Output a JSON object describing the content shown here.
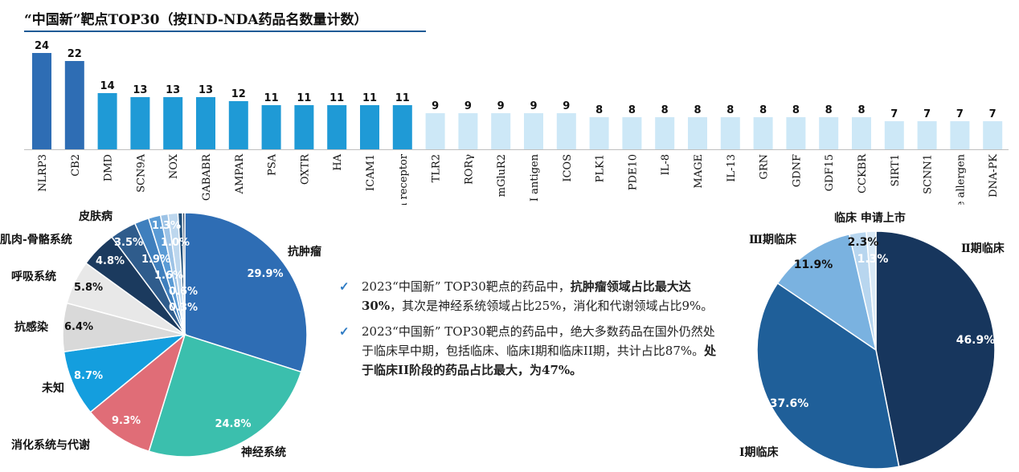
{
  "page": {
    "title": "“中国新”靶点TOP30（按IND-NDA药品名数量计数）"
  },
  "bullets": [
    {
      "segments": [
        {
          "text": "2023“中国新” TOP30靶点的药品中，",
          "bold": false
        },
        {
          "text": "抗肿瘤领域占比最大达30%",
          "bold": true
        },
        {
          "text": "，其次是神经系统领域占比25%，消化和代谢领域占比9%。",
          "bold": false
        }
      ]
    },
    {
      "segments": [
        {
          "text": "2023“中国新” TOP30靶点的药品中，绝大多数药品在国外仍然处于临床早中期，包括临床、临床I期和临床II期，共计占比87%。",
          "bold": false
        },
        {
          "text": "处于临床II阶段的药品占比最大，为47%。",
          "bold": true
        }
      ]
    }
  ],
  "colors": {
    "bar_dark": "#2e6db4",
    "bar_mid": "#1f9ad6",
    "bar_light": "#cde8f7"
  },
  "chart_data": [
    {
      "type": "bar",
      "categories": [
        "NLRP3",
        "CB2",
        "DMD",
        "SCN9A",
        "NOX",
        "GABABR",
        "AMPAR",
        "PSA",
        "OXTR",
        "HA",
        "ICAM1",
        "Amylin receptor",
        "TLR2",
        "RORγ",
        "mGluR2",
        "HLA class I antigen",
        "ICOS",
        "PLK1",
        "PDE10",
        "IL-8",
        "MAGE",
        "IL-13",
        "GRN",
        "GDNF",
        "GDF15",
        "CCKBR",
        "SIRT1",
        "SCNN1",
        "Mite allergen",
        "DNA-PK"
      ],
      "values": [
        24,
        22,
        14,
        13,
        13,
        13,
        12,
        11,
        11,
        11,
        11,
        11,
        9,
        9,
        9,
        9,
        9,
        8,
        8,
        8,
        8,
        8,
        8,
        8,
        8,
        8,
        7,
        7,
        7,
        7
      ],
      "ylim": [
        0,
        24
      ]
    },
    {
      "type": "pie",
      "slices": [
        {
          "label": "抗肿瘤",
          "value": 29.9,
          "value_label": "29.9%",
          "color": "#2e6db4"
        },
        {
          "label": "神经系统",
          "value": 24.8,
          "value_label": "24.8%",
          "color": "#3bbfad"
        },
        {
          "label": "消化系统与代谢",
          "value": 9.3,
          "value_label": "9.3%",
          "color": "#e06d77"
        },
        {
          "label": "未知",
          "value": 8.7,
          "value_label": "8.7%",
          "color": "#149ede"
        },
        {
          "label": "抗感染",
          "value": 6.4,
          "value_label": "6.4%",
          "color": "#d9d9d9"
        },
        {
          "label": "呼吸系统",
          "value": 5.8,
          "value_label": "5.8%",
          "color": "#e8e8e8"
        },
        {
          "label": "肌肉-骨骼系统",
          "value": 4.8,
          "value_label": "4.8%",
          "color": "#1b3a5e"
        },
        {
          "label": "",
          "value": 3.5,
          "value_label": "3.5%",
          "color": "#2f5c8c"
        },
        {
          "label": "皮肤病",
          "value": 1.9,
          "value_label": "1.9%",
          "color": "#3f7fbd"
        },
        {
          "label": "",
          "value": 1.6,
          "value_label": "1.6%",
          "color": "#5a9bd5"
        },
        {
          "label": "",
          "value": 1.0,
          "value_label": "1.0%",
          "color": "#9dc3e6"
        },
        {
          "label": "",
          "value": 1.3,
          "value_label": "1.3%",
          "color": "#bdd7ee"
        },
        {
          "label": "",
          "value": 0.6,
          "value_label": "0.6%",
          "color": "#1f4e79"
        },
        {
          "label": "",
          "value": 0.3,
          "value_label": "0.3%",
          "color": "#263f5f"
        }
      ]
    },
    {
      "type": "pie",
      "slices": [
        {
          "label": "Ⅱ期临床",
          "value": 46.9,
          "value_label": "46.9%",
          "color": "#17365d"
        },
        {
          "label": "Ⅰ期临床",
          "value": 37.6,
          "value_label": "37.6%",
          "color": "#1f5f99"
        },
        {
          "label": "Ⅲ期临床",
          "value": 11.9,
          "value_label": "11.9%",
          "color": "#7ab2e0"
        },
        {
          "label": "临床 申请上市",
          "value": 2.3,
          "value_label": "2.3%",
          "color": "#b8d6ef"
        },
        {
          "label": "",
          "value": 1.3,
          "value_label": "1.3%",
          "color": "#d9e9f6"
        }
      ]
    }
  ]
}
